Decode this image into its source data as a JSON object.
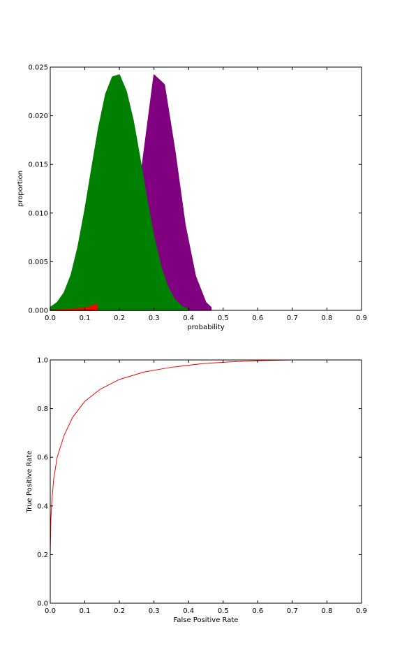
{
  "colors": {
    "green": "#008000",
    "purple": "#800080",
    "red": "#ff0000",
    "axis": "#000000"
  },
  "chart_data": [
    {
      "type": "area",
      "title": "",
      "xlabel": "probability",
      "ylabel": "proportion",
      "xlim": [
        0.0,
        0.9
      ],
      "ylim": [
        0.0,
        0.025
      ],
      "xticks": [
        "0.0",
        "0.1",
        "0.2",
        "0.3",
        "0.4",
        "0.5",
        "0.6",
        "0.7",
        "0.8",
        "0.9"
      ],
      "yticks": [
        "0.000",
        "0.005",
        "0.010",
        "0.015",
        "0.020",
        "0.025"
      ],
      "grid": false,
      "series": [
        {
          "color": "#800080",
          "x": [
            0.0,
            0.03,
            0.06,
            0.09,
            0.12,
            0.15,
            0.18,
            0.21,
            0.24,
            0.27,
            0.3,
            0.33,
            0.36,
            0.39,
            0.42,
            0.45,
            0.465
          ],
          "y": [
            0.0,
            0.0,
            0.0,
            0.0,
            2e-05,
            0.00015,
            0.0008,
            0.0028,
            0.0078,
            0.016,
            0.0242,
            0.0232,
            0.0165,
            0.0088,
            0.0035,
            0.0008,
            0.0003
          ]
        },
        {
          "color": "#008000",
          "x": [
            0.0,
            0.02,
            0.04,
            0.06,
            0.08,
            0.1,
            0.12,
            0.14,
            0.16,
            0.18,
            0.2,
            0.22,
            0.24,
            0.26,
            0.28,
            0.3,
            0.32,
            0.34,
            0.36,
            0.38,
            0.4
          ],
          "y": [
            0.0003,
            0.0008,
            0.0018,
            0.0036,
            0.0065,
            0.0103,
            0.0146,
            0.0188,
            0.0222,
            0.024,
            0.0242,
            0.0225,
            0.0195,
            0.0155,
            0.0113,
            0.0075,
            0.0045,
            0.0024,
            0.0011,
            0.0004,
            0.0001
          ]
        },
        {
          "color": "#ff0000",
          "x": [
            0.0,
            0.03,
            0.06,
            0.09,
            0.11,
            0.125,
            0.135
          ],
          "y": [
            0.0,
            5e-05,
            0.0001,
            0.0002,
            0.0003,
            0.0005,
            0.0006
          ]
        }
      ]
    },
    {
      "type": "line",
      "title": "",
      "xlabel": "False Positive Rate",
      "ylabel": "True Positive Rate",
      "xlim": [
        0.0,
        0.9
      ],
      "ylim": [
        0.0,
        1.0
      ],
      "xticks": [
        "0.0",
        "0.1",
        "0.2",
        "0.3",
        "0.4",
        "0.5",
        "0.6",
        "0.7",
        "0.8",
        "0.9"
      ],
      "yticks": [
        "0.0",
        "0.2",
        "0.4",
        "0.6",
        "0.8",
        "1.0"
      ],
      "grid": false,
      "series": [
        {
          "color": "#ff0000",
          "x": [
            0.0,
            0.002,
            0.005,
            0.01,
            0.02,
            0.04,
            0.065,
            0.1,
            0.145,
            0.2,
            0.27,
            0.35,
            0.44,
            0.52,
            0.6,
            0.7
          ],
          "y": [
            0.2,
            0.35,
            0.43,
            0.51,
            0.6,
            0.69,
            0.765,
            0.83,
            0.88,
            0.92,
            0.95,
            0.97,
            0.985,
            0.992,
            0.997,
            1.0
          ]
        }
      ]
    }
  ]
}
